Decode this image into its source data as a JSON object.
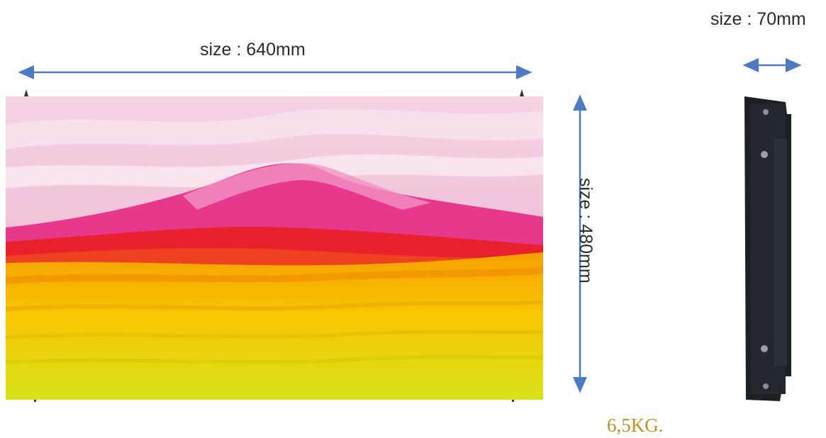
{
  "dimensions": {
    "width_label": "size : 640mm",
    "height_label": "size : 480mm",
    "depth_label": "size : 70mm"
  },
  "weight_label": "6,5KG.",
  "colors": {
    "arrow": "#4f79c0",
    "weight_text": "#b89227",
    "cabinet_frame": "#1c1f24"
  }
}
